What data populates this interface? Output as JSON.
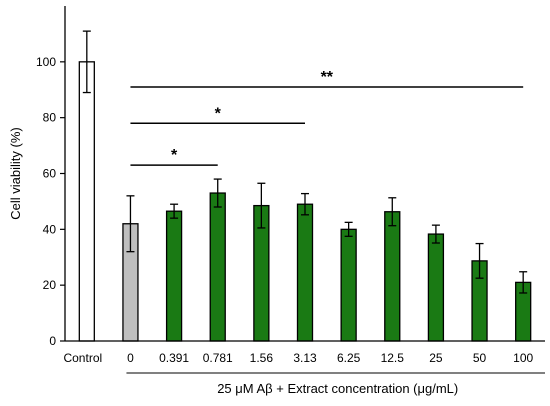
{
  "chart_data": {
    "type": "bar",
    "title": "",
    "ylabel": "Cell viability (%)",
    "xlabel": "",
    "group_label": "25 μM Aβ + Extract concentration (μg/mL)",
    "group_start_category": "0",
    "ylim": [
      0,
      120
    ],
    "yticks": [
      0,
      20,
      40,
      60,
      80,
      100
    ],
    "categories": [
      "Control",
      "0",
      "0.391",
      "0.781",
      "1.56",
      "3.13",
      "6.25",
      "12.5",
      "25",
      "50",
      "100"
    ],
    "values": [
      100,
      42,
      46.5,
      53,
      48.5,
      49,
      40,
      46.3,
      38.3,
      28.7,
      21
    ],
    "errors": [
      11,
      10,
      2.5,
      5,
      8,
      3.8,
      2.5,
      5,
      3.2,
      6.2,
      3.8
    ],
    "bar_colors": [
      "#ffffff",
      "#bfbfbf",
      "#1a7a14",
      "#1a7a14",
      "#1a7a14",
      "#1a7a14",
      "#1a7a14",
      "#1a7a14",
      "#1a7a14",
      "#1a7a14",
      "#1a7a14"
    ],
    "significance": [
      {
        "from": "0",
        "to": "0.781",
        "y": 63,
        "label": "*"
      },
      {
        "from": "0",
        "to": "3.13",
        "y": 78,
        "label": "*"
      },
      {
        "from": "0",
        "to": "100",
        "y": 91,
        "label": "**"
      }
    ],
    "grid": false,
    "legend": "none"
  }
}
